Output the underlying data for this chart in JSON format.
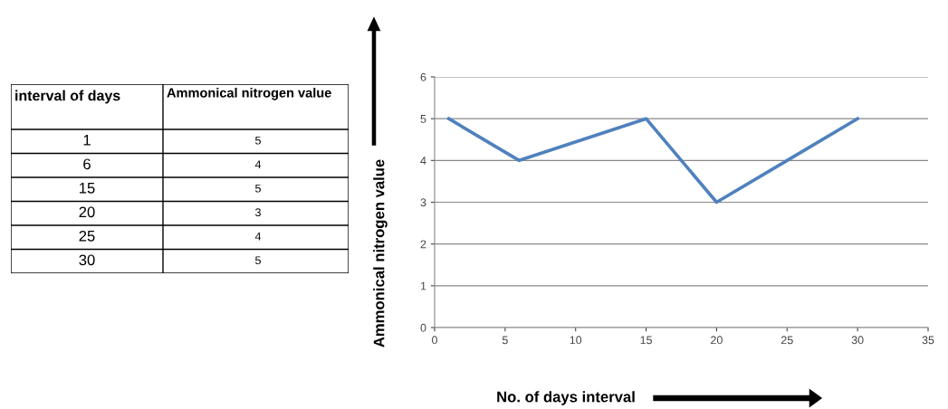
{
  "chart_data": [
    {
      "type": "other",
      "annotations": [
        "interval of days",
        "Ammonical nitrogen value",
        "1",
        "5",
        "6",
        "4",
        "15",
        "5",
        "20",
        "3",
        "25",
        "4",
        "30",
        "5"
      ]
    },
    {
      "type": "line",
      "xlabel": "No. of days interval",
      "ylabel": "Ammonical nitrogen value",
      "x": [
        1,
        6,
        15,
        20,
        25,
        30
      ],
      "series": [
        {
          "color": "#4f81bd",
          "values": [
            5,
            4,
            5,
            3,
            4,
            5
          ]
        }
      ],
      "xlim": [
        0,
        35
      ],
      "xticks": [
        0,
        5,
        10,
        15,
        20,
        25,
        30,
        35
      ],
      "ylim": [
        0,
        6
      ],
      "yticks": [
        0,
        1,
        2,
        3,
        4,
        5,
        6
      ],
      "grid": "y",
      "marker": "none",
      "line_style": "solid"
    }
  ]
}
